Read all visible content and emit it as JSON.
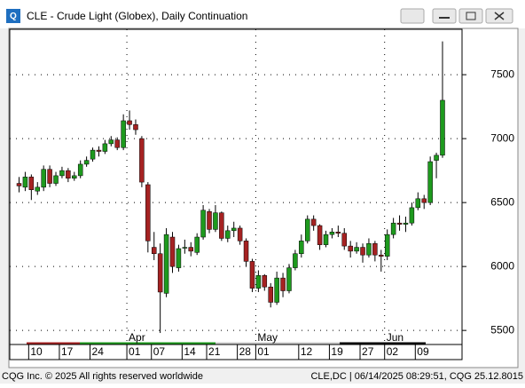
{
  "window": {
    "footer_left": "CQG Inc. © 2025 All rights reserved worldwide",
    "footer_right": "CLE,DC | 06/14/2025 08:29:51, CQG 25.12.8015"
  },
  "chart_data": {
    "type": "candlestick",
    "title": "CLE - Crude Light (Globex), Daily Continuation",
    "categories": [
      null,
      null,
      "10",
      null,
      null,
      null,
      null,
      "17",
      null,
      null,
      null,
      null,
      "24",
      null,
      null,
      null,
      null,
      null,
      "01",
      null,
      null,
      null,
      "07",
      null,
      null,
      null,
      null,
      "14",
      null,
      null,
      null,
      "21",
      null,
      null,
      null,
      null,
      "28",
      null,
      null,
      "01",
      null,
      null,
      null,
      null,
      null,
      null,
      "12",
      null,
      null,
      null,
      null,
      "19",
      null,
      null,
      null,
      null,
      "27",
      null,
      null,
      null,
      "02",
      null,
      null,
      null,
      null,
      "09",
      null,
      null,
      null,
      null
    ],
    "month_labels": [
      null,
      null,
      null,
      null,
      null,
      null,
      null,
      null,
      null,
      null,
      null,
      null,
      null,
      null,
      null,
      null,
      null,
      null,
      "Apr",
      null,
      null,
      null,
      null,
      null,
      null,
      null,
      null,
      null,
      null,
      null,
      null,
      null,
      null,
      null,
      null,
      null,
      null,
      null,
      null,
      "May",
      null,
      null,
      null,
      null,
      null,
      null,
      null,
      null,
      null,
      null,
      null,
      null,
      null,
      null,
      null,
      null,
      null,
      null,
      null,
      null,
      "Jun",
      null,
      null,
      null,
      null,
      null,
      null,
      null,
      null,
      null
    ],
    "open": [
      6650,
      6620,
      6700,
      6590,
      6620,
      6760,
      6650,
      6710,
      6750,
      6690,
      6710,
      6800,
      6840,
      6910,
      6900,
      6960,
      6990,
      6930,
      7140,
      7110,
      7000,
      6640,
      6150,
      6100,
      5790,
      6230,
      5990,
      6150,
      6150,
      6110,
      6230,
      6430,
      6290,
      6420,
      6220,
      6280,
      6300,
      6200,
      6040,
      5830,
      5930,
      5840,
      5720,
      5910,
      5810,
      5990,
      6100,
      6200,
      6370,
      6320,
      6170,
      6250,
      6270,
      6260,
      6160,
      6120,
      6150,
      6090,
      6180,
      6090,
      6080,
      6250,
      6340,
      6330,
      6340,
      6460,
      6530,
      6500,
      6830,
      6870
    ],
    "high": [
      6700,
      6740,
      6720,
      6660,
      6790,
      6790,
      6740,
      6780,
      6770,
      6740,
      6830,
      6860,
      6930,
      6940,
      6990,
      7020,
      7010,
      7190,
      7220,
      7150,
      7020,
      6660,
      6270,
      6180,
      6300,
      6270,
      6170,
      6210,
      6190,
      6260,
      6480,
      6450,
      6480,
      6430,
      6320,
      6350,
      6320,
      6220,
      6060,
      5970,
      5940,
      5870,
      5960,
      5950,
      6020,
      6130,
      6250,
      6400,
      6400,
      6330,
      6280,
      6300,
      6320,
      6300,
      6200,
      6190,
      6180,
      6220,
      6200,
      6130,
      6290,
      6380,
      6400,
      6390,
      6500,
      6580,
      6560,
      6860,
      6890,
      7760
    ],
    "low": [
      6580,
      6590,
      6520,
      6560,
      6590,
      6620,
      6630,
      6690,
      6660,
      6670,
      6690,
      6780,
      6820,
      6860,
      6880,
      6940,
      6910,
      6910,
      7070,
      7030,
      6620,
      6110,
      6050,
      5480,
      5760,
      5950,
      5960,
      6100,
      6080,
      6090,
      6210,
      6260,
      6270,
      6200,
      6190,
      6230,
      6170,
      6000,
      5800,
      5800,
      5810,
      5680,
      5700,
      5760,
      5790,
      5970,
      6070,
      6180,
      6280,
      6130,
      6150,
      6220,
      6230,
      6130,
      6070,
      6100,
      6030,
      6070,
      6040,
      5960,
      6050,
      6220,
      6280,
      6270,
      6320,
      6440,
      6450,
      6480,
      6690,
      6850
    ],
    "close": [
      6630,
      6700,
      6600,
      6620,
      6760,
      6650,
      6710,
      6750,
      6690,
      6710,
      6800,
      6830,
      6910,
      6900,
      6960,
      6990,
      6930,
      7140,
      7110,
      7070,
      6660,
      6200,
      6100,
      5800,
      6250,
      6000,
      6140,
      6150,
      6120,
      6230,
      6440,
      6290,
      6420,
      6220,
      6280,
      6300,
      6200,
      6040,
      5830,
      5930,
      5840,
      5720,
      5910,
      5810,
      5990,
      6100,
      6200,
      6370,
      6320,
      6170,
      6250,
      6270,
      6260,
      6160,
      6120,
      6150,
      6090,
      6180,
      6090,
      6080,
      6250,
      6340,
      6330,
      6340,
      6460,
      6530,
      6500,
      6820,
      6870,
      7300
    ],
    "up_color": "#1e9a1e",
    "down_color": "#a52222",
    "ylim": [
      5390,
      7855
    ],
    "yticks": [
      5500,
      6000,
      6500,
      7000,
      7500
    ],
    "grid": true
  }
}
